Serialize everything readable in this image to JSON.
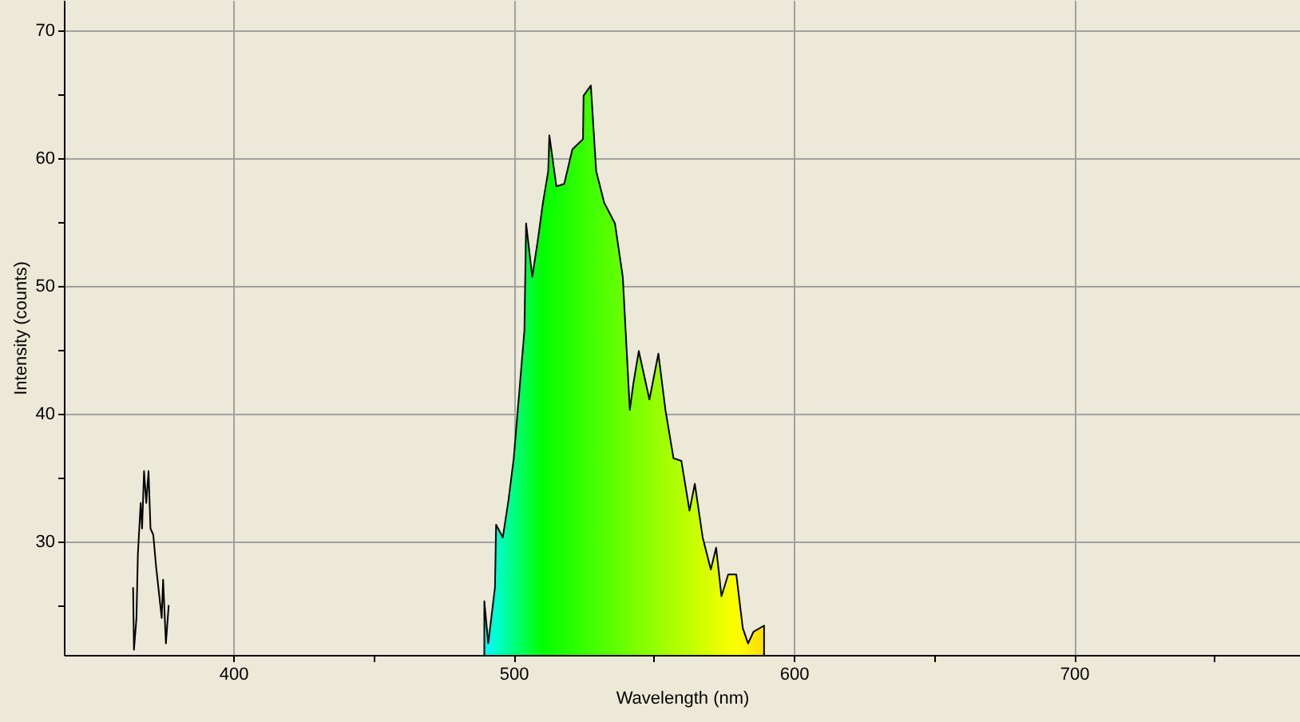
{
  "chart_data": {
    "type": "line",
    "xlabel": "Wavelength (nm)",
    "ylabel": "Intensity (counts)",
    "xlim": [
      339.6,
      780.6
    ],
    "ylim": [
      21.1,
      72.4
    ],
    "xticks": [
      400,
      {
        "value": 450,
        "label": null
      },
      500,
      {
        "value": 550,
        "label": null
      },
      600,
      {
        "value": 650,
        "label": null
      },
      700,
      {
        "value": 750,
        "label": null
      }
    ],
    "yticks": [
      {
        "value": 25,
        "label": null
      },
      30,
      {
        "value": 35,
        "label": null
      },
      40,
      {
        "value": 45,
        "label": null
      },
      50,
      {
        "value": 55,
        "label": null
      },
      60,
      {
        "value": 65,
        "label": null
      },
      70
    ],
    "grid": true,
    "series": [
      {
        "color": "#000000",
        "x": [
          364.3,
          364.6,
          365.5,
          366.0,
          367.0,
          367.5,
          368.2,
          369.0,
          369.8,
          370.5,
          371.5,
          372.5,
          373.5,
          374.5,
          375.0,
          376.0,
          377.0
        ],
        "values": [
          26.4,
          21.5,
          24,
          29,
          33,
          31,
          35.5,
          33,
          35.5,
          31,
          30.5,
          28,
          26,
          24,
          27,
          22,
          25
        ]
      },
      {
        "type": "area",
        "color": "#000000",
        "x": [
          489.6,
          491.0,
          493.4,
          493.8,
          496.2,
          498.2,
          500.1,
          502.0,
          503.9,
          504.5,
          506.7,
          508.7,
          510.5,
          512.4,
          512.8,
          515.3,
          518.1,
          521.0,
          524.8,
          525.0,
          527.6,
          529.5,
          532.4,
          536.2,
          539.0,
          541.5,
          542.8,
          544.7,
          548.5,
          551.7,
          554.2,
          557.1,
          559.9,
          562.8,
          564.7,
          567.5,
          570.4,
          572.3,
          574.2,
          576.6,
          579.5,
          581.8,
          583.7,
          585.6,
          589.4
        ],
        "values": [
          25.3,
          22.0,
          26.4,
          31.3,
          30.3,
          33.2,
          36.5,
          41.5,
          46.5,
          54.9,
          50.7,
          53.6,
          56.5,
          59.0,
          61.8,
          57.8,
          58.0,
          60.7,
          61.5,
          64.9,
          65.7,
          59.0,
          56.5,
          54.9,
          50.7,
          40.3,
          42.4,
          44.9,
          41.1,
          44.7,
          40.3,
          36.5,
          36.3,
          32.4,
          34.5,
          30.3,
          27.8,
          29.5,
          25.7,
          27.4,
          27.4,
          23.2,
          22.0,
          22.9,
          23.4
        ]
      }
    ]
  }
}
